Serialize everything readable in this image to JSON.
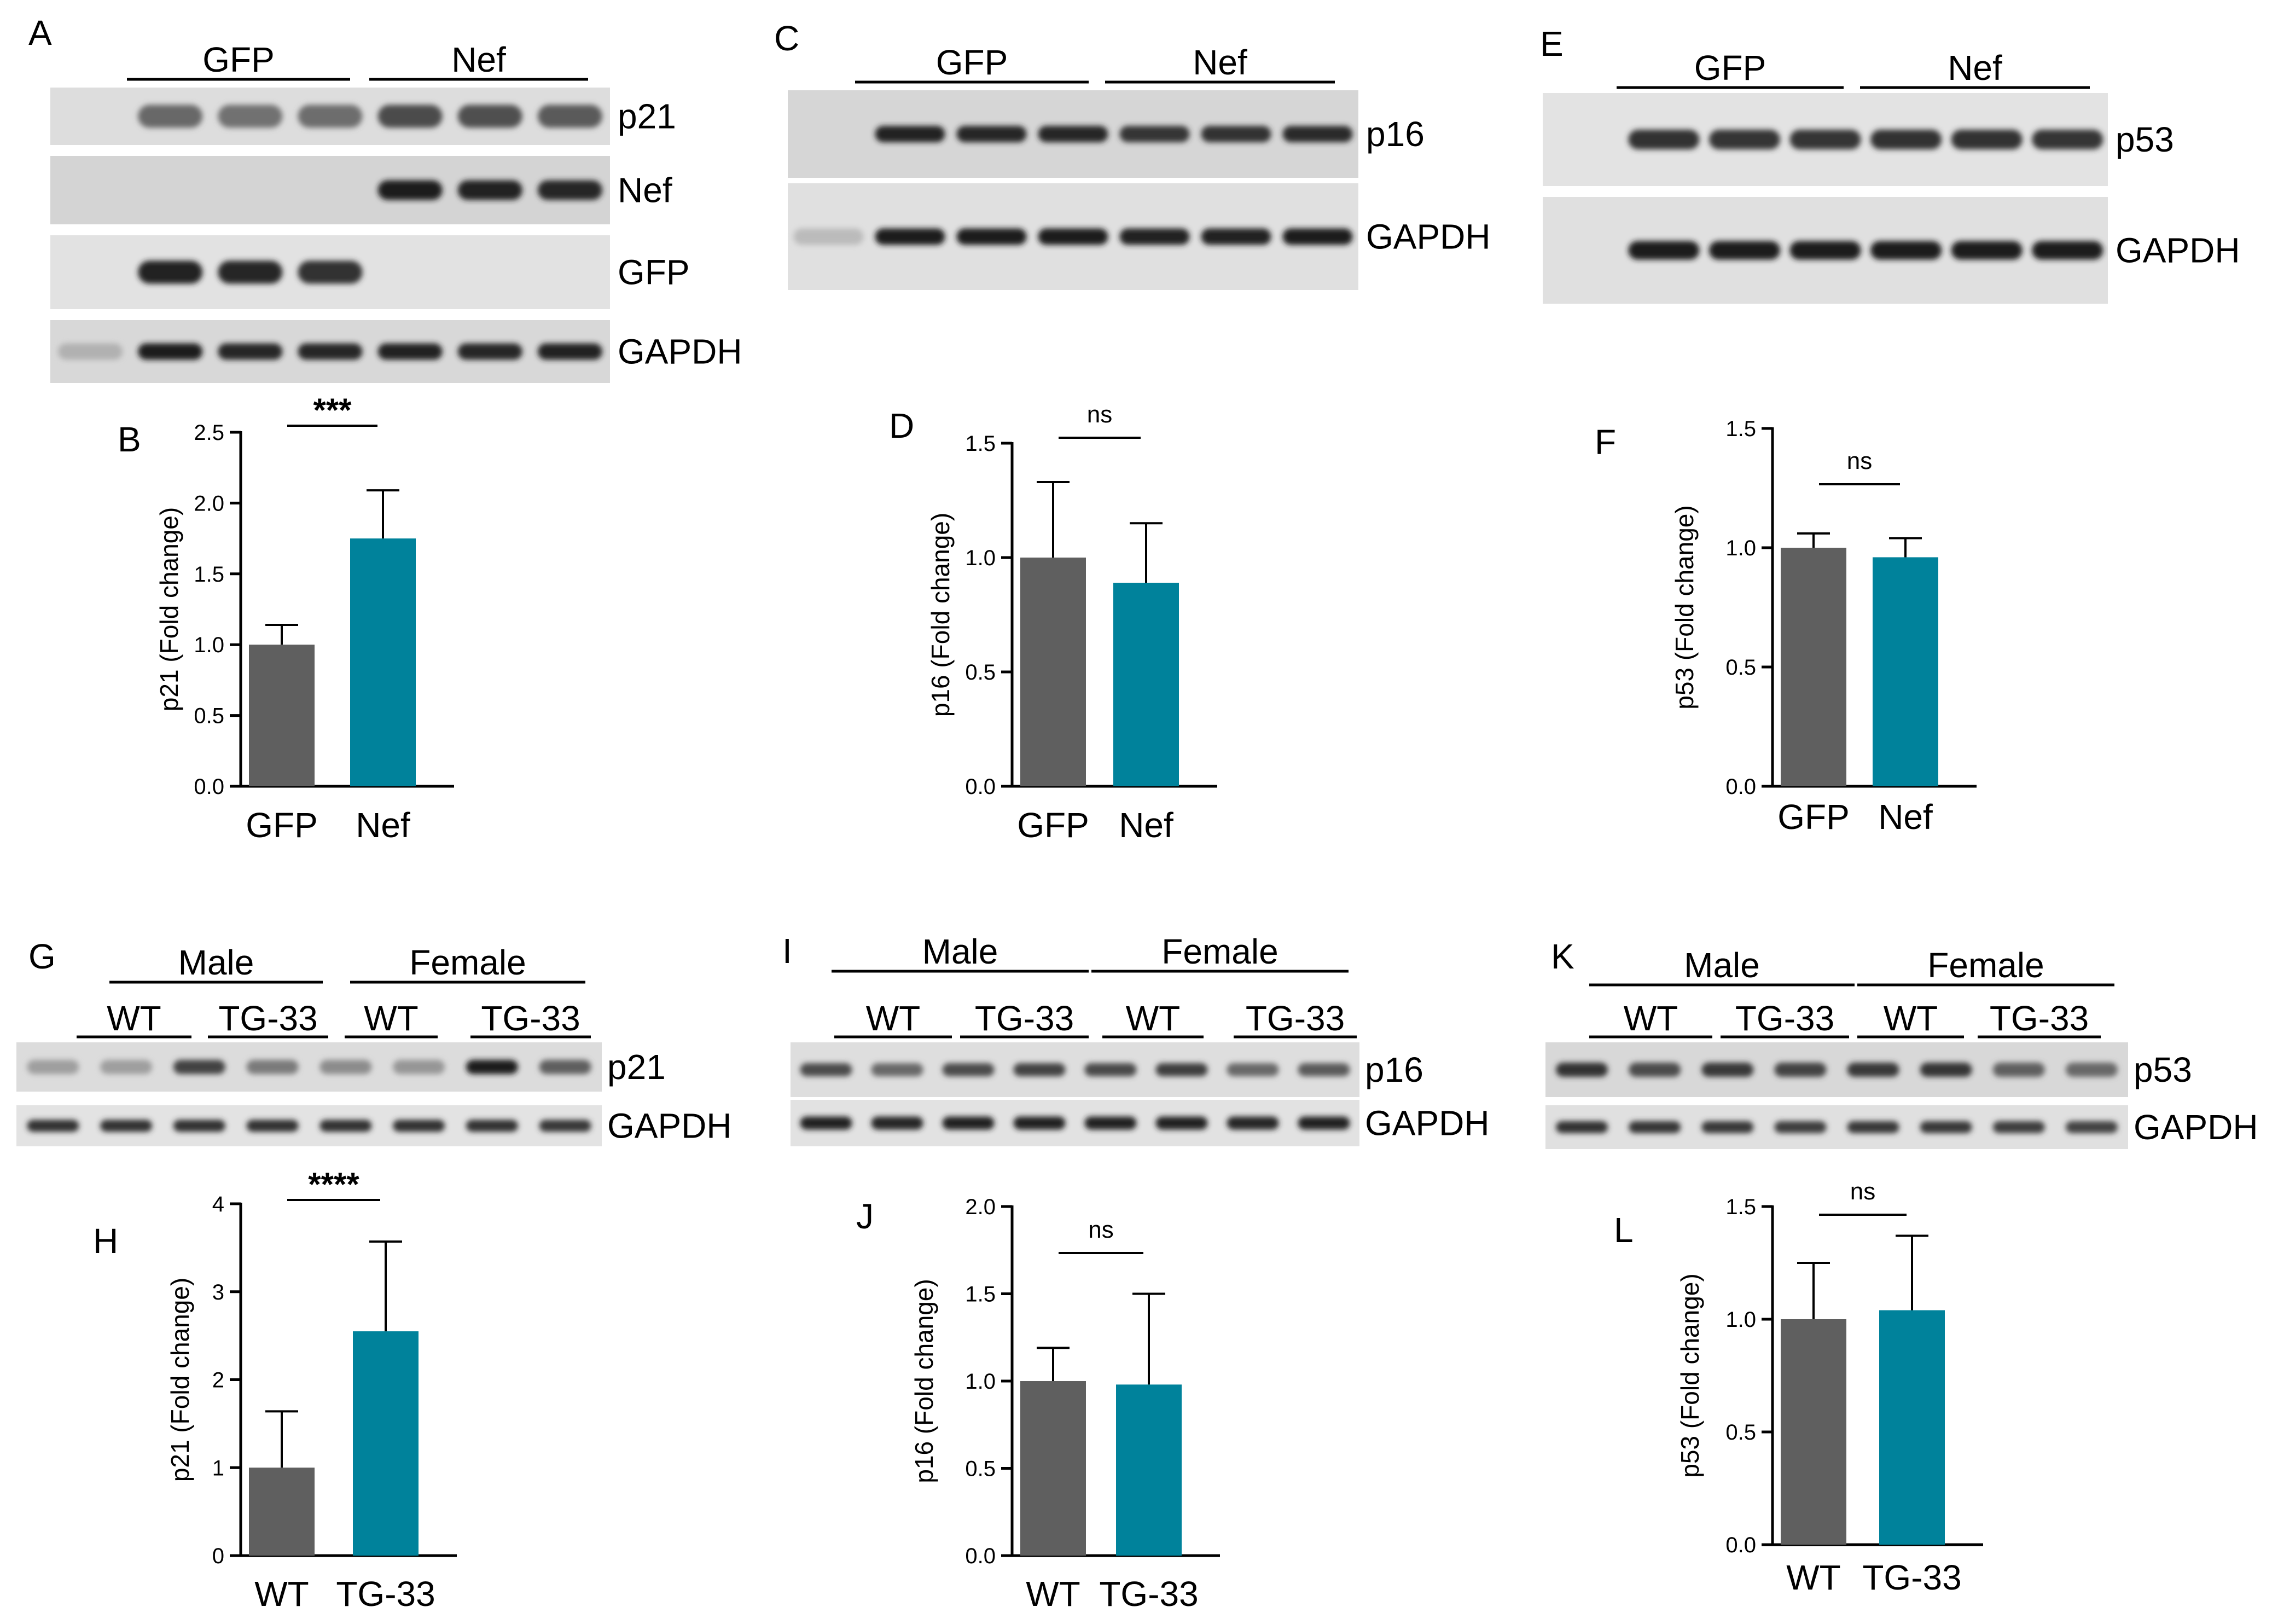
{
  "colors": {
    "control_bar": "#5f5f5f",
    "treatment_bar": "#00829b",
    "axis": "#000000"
  },
  "panels": {
    "A": {
      "letter": "A",
      "groups": [
        "GFP",
        "Nef"
      ],
      "strips": [
        {
          "label": "p21",
          "bands": [
            0,
            0.55,
            0.5,
            0.52,
            0.7,
            0.68,
            0.62
          ]
        },
        {
          "label": "Nef",
          "bands": [
            0,
            0,
            0,
            0,
            0.95,
            0.92,
            0.9
          ]
        },
        {
          "label": "GFP",
          "bands": [
            0,
            0.92,
            0.9,
            0.85,
            0,
            0,
            0
          ]
        },
        {
          "label": "GAPDH",
          "bands": [
            0.15,
            0.95,
            0.9,
            0.9,
            0.92,
            0.9,
            0.92
          ]
        }
      ]
    },
    "C": {
      "letter": "C",
      "groups": [
        "GFP",
        "Nef"
      ],
      "strips": [
        {
          "label": "p16",
          "bands": [
            0,
            0.92,
            0.9,
            0.9,
            0.82,
            0.85,
            0.88
          ]
        },
        {
          "label": "GAPDH",
          "bands": [
            0.1,
            0.95,
            0.95,
            0.95,
            0.92,
            0.92,
            0.95
          ]
        }
      ]
    },
    "E": {
      "letter": "E",
      "groups": [
        "GFP",
        "Nef"
      ],
      "strips": [
        {
          "label": "p53",
          "bands": [
            0,
            0.85,
            0.82,
            0.82,
            0.85,
            0.85,
            0.82
          ]
        },
        {
          "label": "GAPDH",
          "bands": [
            0,
            0.95,
            0.95,
            0.95,
            0.95,
            0.95,
            0.95
          ]
        }
      ]
    },
    "G": {
      "letter": "G",
      "sexes": [
        "Male",
        "Female"
      ],
      "genotypes": [
        "WT",
        "TG-33",
        "WT",
        "TG-33"
      ],
      "strips": [
        {
          "label": "p21",
          "bands": [
            0.25,
            0.25,
            0.75,
            0.45,
            0.35,
            0.3,
            0.95,
            0.6
          ]
        },
        {
          "label": "GAPDH",
          "bands": [
            0.85,
            0.85,
            0.85,
            0.85,
            0.85,
            0.85,
            0.85,
            0.8
          ]
        }
      ]
    },
    "I": {
      "letter": "I",
      "sexes": [
        "Male",
        "Female"
      ],
      "genotypes": [
        "WT",
        "TG-33",
        "WT",
        "TG-33"
      ],
      "strips": [
        {
          "label": "p16",
          "bands": [
            0.7,
            0.55,
            0.7,
            0.75,
            0.72,
            0.78,
            0.55,
            0.62
          ]
        },
        {
          "label": "GAPDH",
          "bands": [
            0.92,
            0.9,
            0.92,
            0.92,
            0.92,
            0.92,
            0.9,
            0.92
          ]
        }
      ]
    },
    "K": {
      "letter": "K",
      "sexes": [
        "Male",
        "Female"
      ],
      "genotypes": [
        "WT",
        "TG-33",
        "WT",
        "TG-33"
      ],
      "strips": [
        {
          "label": "p53",
          "bands": [
            0.85,
            0.7,
            0.8,
            0.75,
            0.8,
            0.82,
            0.6,
            0.55
          ]
        },
        {
          "label": "GAPDH",
          "bands": [
            0.85,
            0.82,
            0.8,
            0.78,
            0.8,
            0.8,
            0.78,
            0.75
          ]
        }
      ]
    }
  },
  "chart_data": [
    {
      "panel": "B",
      "type": "bar",
      "categories": [
        "GFP",
        "Nef"
      ],
      "values": [
        1.0,
        1.75
      ],
      "errors": [
        0.14,
        0.34
      ],
      "ylabel": "p21 (Fold change)",
      "ylim": [
        0,
        2.5
      ],
      "yticks": [
        0.0,
        0.5,
        1.0,
        1.5,
        2.0,
        2.5
      ],
      "tick_labels": [
        "0.0",
        "0.5",
        "1.0",
        "1.5",
        "2.0",
        "2.5"
      ],
      "significance": "***"
    },
    {
      "panel": "D",
      "type": "bar",
      "categories": [
        "GFP",
        "Nef"
      ],
      "values": [
        1.0,
        0.89
      ],
      "errors": [
        0.33,
        0.26
      ],
      "ylabel": "p16 (Fold change)",
      "ylim": [
        0,
        1.5
      ],
      "yticks": [
        0.0,
        0.5,
        1.0,
        1.5
      ],
      "tick_labels": [
        "0.0",
        "0.5",
        "1.0",
        "1.5"
      ],
      "significance": "ns"
    },
    {
      "panel": "F",
      "type": "bar",
      "categories": [
        "GFP",
        "Nef"
      ],
      "values": [
        1.0,
        0.96
      ],
      "errors": [
        0.06,
        0.08
      ],
      "ylabel": "p53 (Fold change)",
      "ylim": [
        0,
        1.5
      ],
      "yticks": [
        0.0,
        0.5,
        1.0,
        1.5
      ],
      "tick_labels": [
        "0.0",
        "0.5",
        "1.0",
        "1.5"
      ],
      "significance": "ns"
    },
    {
      "panel": "H",
      "type": "bar",
      "categories": [
        "WT",
        "TG-33"
      ],
      "values": [
        1.0,
        2.55
      ],
      "errors": [
        0.64,
        1.02
      ],
      "ylabel": "p21 (Fold change)",
      "ylim": [
        0,
        4
      ],
      "yticks": [
        0,
        1,
        2,
        3,
        4
      ],
      "tick_labels": [
        "0",
        "1",
        "2",
        "3",
        "4"
      ],
      "significance": "****"
    },
    {
      "panel": "J",
      "type": "bar",
      "categories": [
        "WT",
        "TG-33"
      ],
      "values": [
        1.0,
        0.98
      ],
      "errors": [
        0.19,
        0.52
      ],
      "ylabel": "p16 (Fold change)",
      "ylim": [
        0,
        2.0
      ],
      "yticks": [
        0.0,
        0.5,
        1.0,
        1.5,
        2.0
      ],
      "tick_labels": [
        "0.0",
        "0.5",
        "1.0",
        "1.5",
        "2.0"
      ],
      "significance": "ns"
    },
    {
      "panel": "L",
      "type": "bar",
      "categories": [
        "WT",
        "TG-33"
      ],
      "values": [
        1.0,
        1.04
      ],
      "errors": [
        0.25,
        0.33
      ],
      "ylabel": "p53 (Fold change)",
      "ylim": [
        0,
        1.5
      ],
      "yticks": [
        0.0,
        0.5,
        1.0,
        1.5
      ],
      "tick_labels": [
        "0.0",
        "0.5",
        "1.0",
        "1.5"
      ],
      "significance": "ns"
    }
  ]
}
